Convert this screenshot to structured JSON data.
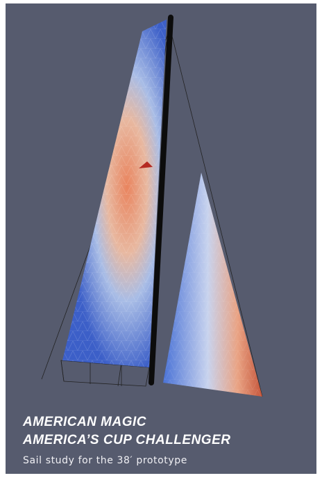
{
  "caption": {
    "title": "AMERICAN MAGIC",
    "subtitle": "AMERICA’S CUP CHALLENGER",
    "description": "Sail study for the 38′ prototype"
  }
}
